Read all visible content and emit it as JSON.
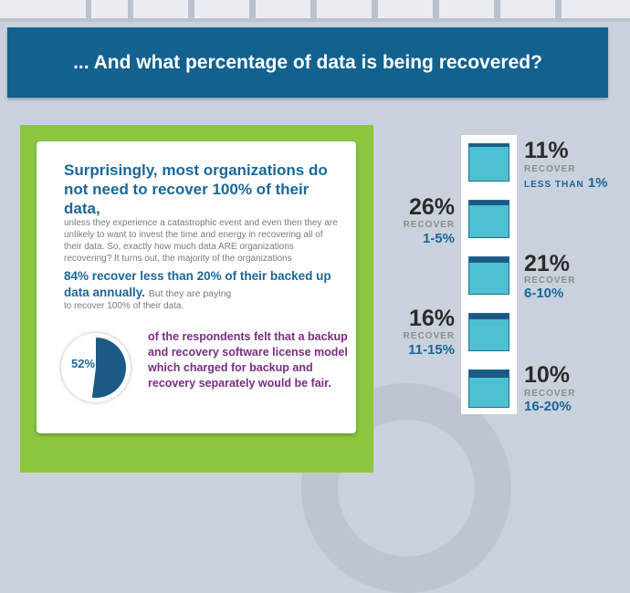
{
  "header": {
    "title": "... And what percentage of data is being recovered?"
  },
  "card": {
    "headline": "Surprisingly, most organizations do not need to recover 100% of their data,",
    "paragraph1": "unless they experience a catastrophic event and even then they are unlikely to want to invest the time and energy in recovering all of their data.  So, exactly how much data ARE organizations recovering?  It turns out, the majority of the organizations",
    "emphasis": "84% recover less than 20% of their backed up data annually.",
    "paragraph2_lead": "But they are paying",
    "paragraph2_tail": "to recover 100% of their data.",
    "pie": {
      "label": "52%",
      "value": 52
    },
    "survey_text": "of the respondents felt that a backup and recovery software license model which charged for backup and recovery separately would be fair."
  },
  "recovery": [
    {
      "percent": "11%",
      "recover": "RECOVER",
      "range_small": "LESS THAN",
      "range": "1%",
      "fill": 0.08
    },
    {
      "percent": "26%",
      "recover": "RECOVER",
      "range": "1-5%",
      "fill": 0.12
    },
    {
      "percent": "21%",
      "recover": "RECOVER",
      "range": "6-10%",
      "fill": 0.14
    },
    {
      "percent": "16%",
      "recover": "RECOVER",
      "range": "11-15%",
      "fill": 0.16
    },
    {
      "percent": "10%",
      "recover": "RECOVER",
      "range": "16-20%",
      "fill": 0.2
    }
  ],
  "colors": {
    "banner": "#13618f",
    "green_panel": "#8cc63f",
    "teal": "#4cc0d1",
    "navy_fill": "#1c5a85",
    "purple": "#7b2c84"
  }
}
